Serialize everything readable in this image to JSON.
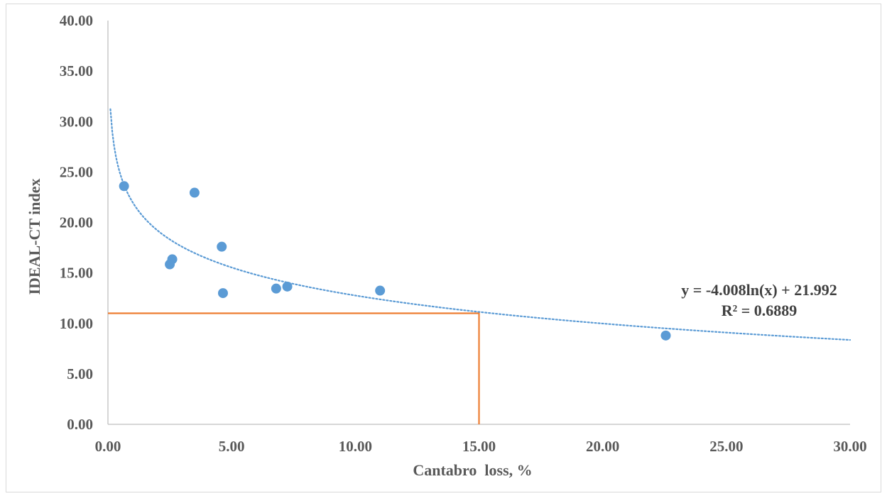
{
  "chart_data": {
    "type": "scatter",
    "title": "",
    "xlabel": "Cantabro  loss, %",
    "ylabel": "IDEAL-CT index",
    "xlim": [
      0,
      30
    ],
    "ylim": [
      0,
      40
    ],
    "x_ticks": [
      "0.00",
      "5.00",
      "10.00",
      "15.00",
      "20.00",
      "25.00",
      "30.00"
    ],
    "y_ticks": [
      "0.00",
      "5.00",
      "10.00",
      "15.00",
      "20.00",
      "25.00",
      "30.00",
      "35.00",
      "40.00"
    ],
    "x_tick_values": [
      0,
      5,
      10,
      15,
      20,
      25,
      30
    ],
    "y_tick_values": [
      0,
      5,
      10,
      15,
      20,
      25,
      30,
      35,
      40
    ],
    "grid": false,
    "points": [
      {
        "x": 0.65,
        "y": 23.6
      },
      {
        "x": 3.5,
        "y": 22.95
      },
      {
        "x": 4.6,
        "y": 17.6
      },
      {
        "x": 2.6,
        "y": 16.35
      },
      {
        "x": 2.5,
        "y": 15.85
      },
      {
        "x": 4.65,
        "y": 13.0
      },
      {
        "x": 6.8,
        "y": 13.45
      },
      {
        "x": 7.25,
        "y": 13.65
      },
      {
        "x": 11.0,
        "y": 13.25
      },
      {
        "x": 22.55,
        "y": 8.8
      }
    ],
    "trendline": {
      "type": "logarithmic",
      "a": -4.008,
      "b": 21.992,
      "x_range": [
        0.1,
        30
      ],
      "equation_label": "y = -4.008ln(x) + 21.992",
      "r2_label": "R² = 0.6889"
    },
    "reference_lines": {
      "x": 15,
      "y": 11
    },
    "colors": {
      "points": "#5b9bd5",
      "trendline": "#5b9bd5",
      "reference": "#ed7d31",
      "axis": "#bfbfbf",
      "tick_text": "#595959",
      "equation_text": "#404040"
    }
  }
}
